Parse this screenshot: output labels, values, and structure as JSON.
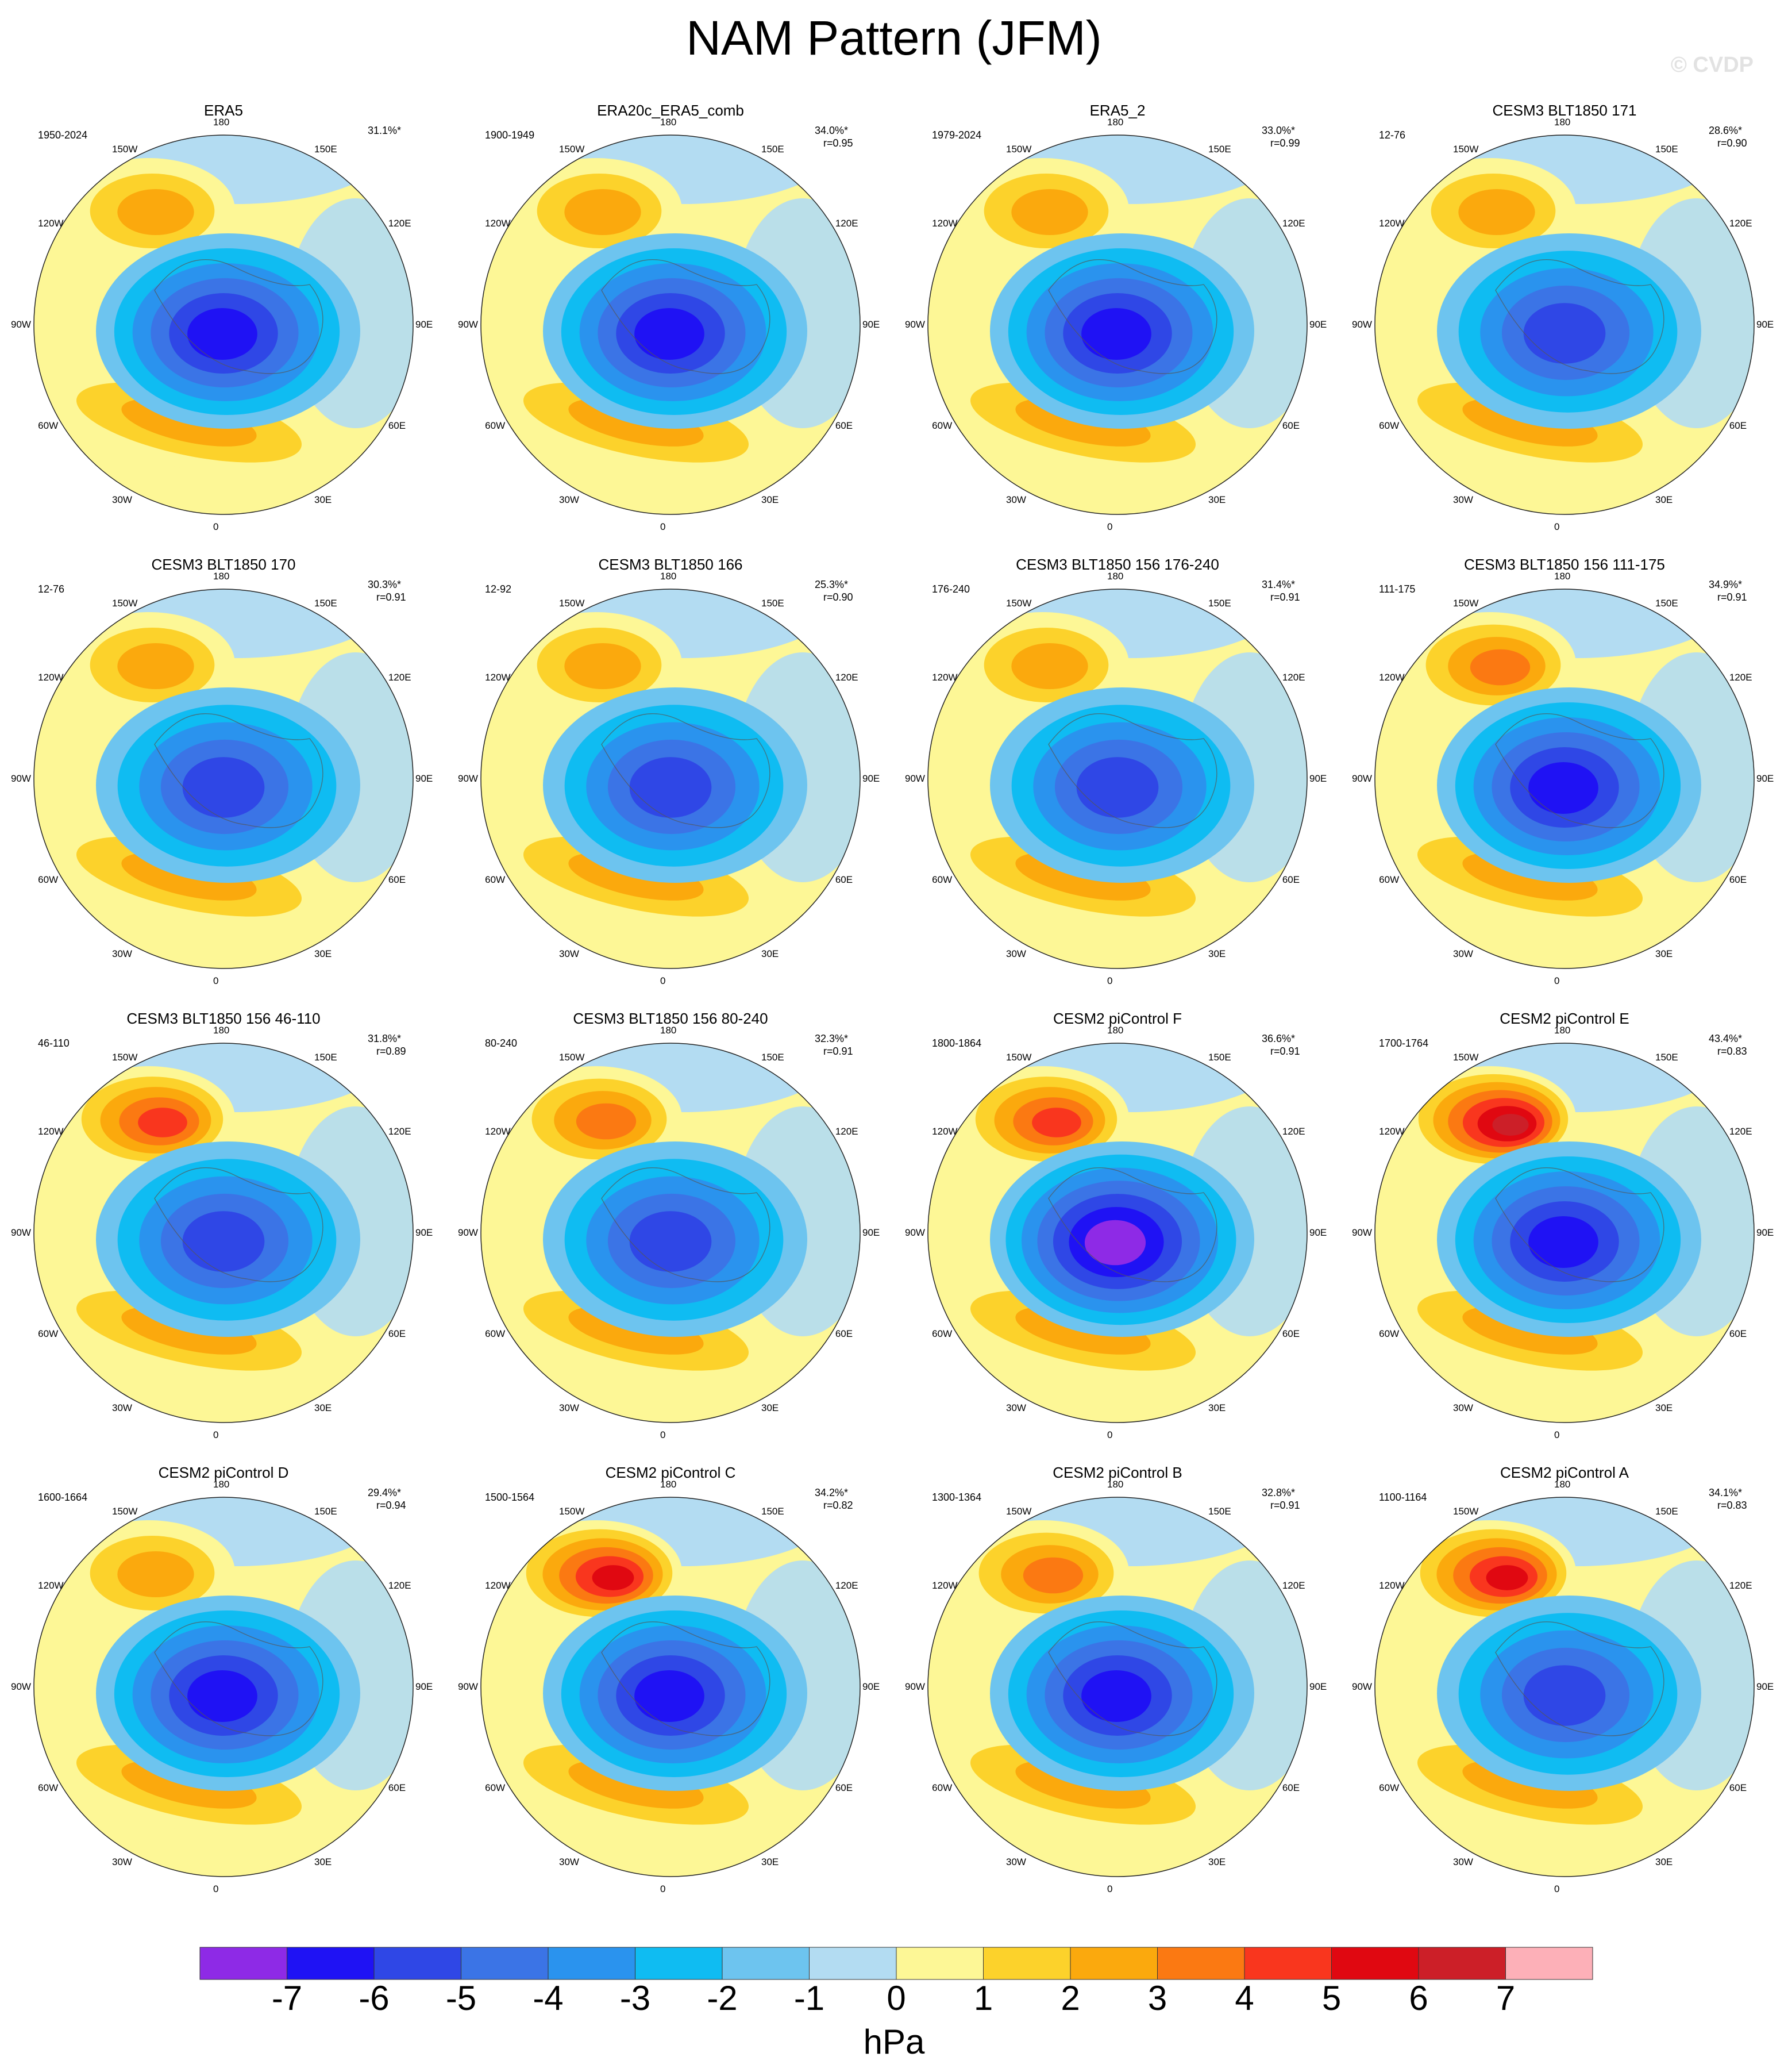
{
  "title": "NAM Pattern (JFM)",
  "watermark": "© CVDP",
  "lon_labels": [
    "180",
    "150E",
    "120E",
    "90E",
    "60E",
    "30E",
    "0",
    "30W",
    "60W",
    "90W",
    "120W",
    "150W"
  ],
  "colorbar": {
    "units": "hPa",
    "labels": [
      "-7",
      "-6",
      "-5",
      "-4",
      "-3",
      "-2",
      "-1",
      "0",
      "1",
      "2",
      "3",
      "4",
      "5",
      "6",
      "7"
    ],
    "colors": [
      "#8e2ae6",
      "#1f12f4",
      "#2f47e6",
      "#3b74e6",
      "#2a93ee",
      "#0fbcf2",
      "#6dc4ef",
      "#b3dcf2",
      "#fdf796",
      "#fcd22b",
      "#fba90d",
      "#fb7912",
      "#f9361e",
      "#e00811",
      "#cc1f28",
      "#fdb0b8"
    ]
  },
  "panels": [
    {
      "title": "ERA5",
      "period": "1950-2024",
      "pct": "31.1%*",
      "r": "",
      "pos_max": 3,
      "neg_min": -6
    },
    {
      "title": "ERA20c_ERA5_comb",
      "period": "1900-1949",
      "pct": "34.0%*",
      "r": "r=0.95",
      "pos_max": 3,
      "neg_min": -6
    },
    {
      "title": "ERA5_2",
      "period": "1979-2024",
      "pct": "33.0%*",
      "r": "r=0.99",
      "pos_max": 3,
      "neg_min": -6
    },
    {
      "title": "CESM3 BLT1850 171",
      "period": "12-76",
      "pct": "28.6%*",
      "r": "r=0.90",
      "pos_max": 3,
      "neg_min": -5
    },
    {
      "title": "CESM3 BLT1850 170",
      "period": "12-76",
      "pct": "30.3%*",
      "r": "r=0.91",
      "pos_max": 3,
      "neg_min": -5
    },
    {
      "title": "CESM3 BLT1850 166",
      "period": "12-92",
      "pct": "25.3%*",
      "r": "r=0.90",
      "pos_max": 3,
      "neg_min": -5
    },
    {
      "title": "CESM3 BLT1850 156 176-240",
      "period": "176-240",
      "pct": "31.4%*",
      "r": "r=0.91",
      "pos_max": 3,
      "neg_min": -5
    },
    {
      "title": "CESM3 BLT1850 156 111-175",
      "period": "111-175",
      "pct": "34.9%*",
      "r": "r=0.91",
      "pos_max": 4,
      "neg_min": -6
    },
    {
      "title": "CESM3 BLT1850 156 46-110",
      "period": "46-110",
      "pct": "31.8%*",
      "r": "r=0.89",
      "pos_max": 5,
      "neg_min": -5
    },
    {
      "title": "CESM3 BLT1850 156 80-240",
      "period": "80-240",
      "pct": "32.3%*",
      "r": "r=0.91",
      "pos_max": 4,
      "neg_min": -5
    },
    {
      "title": "CESM2 piControl F",
      "period": "1800-1864",
      "pct": "36.6%*",
      "r": "r=0.91",
      "pos_max": 5,
      "neg_min": -7
    },
    {
      "title": "CESM2 piControl E",
      "period": "1700-1764",
      "pct": "43.4%*",
      "r": "r=0.83",
      "pos_max": 7,
      "neg_min": -6
    },
    {
      "title": "CESM2 piControl D",
      "period": "1600-1664",
      "pct": "29.4%*",
      "r": "r=0.94",
      "pos_max": 3,
      "neg_min": -6
    },
    {
      "title": "CESM2 piControl C",
      "period": "1500-1564",
      "pct": "34.2%*",
      "r": "r=0.82",
      "pos_max": 6,
      "neg_min": -6
    },
    {
      "title": "CESM2 piControl B",
      "period": "1300-1364",
      "pct": "32.8%*",
      "r": "r=0.91",
      "pos_max": 4,
      "neg_min": -6
    },
    {
      "title": "CESM2 piControl A",
      "period": "1100-1164",
      "pct": "34.1%*",
      "r": "r=0.83",
      "pos_max": 6,
      "neg_min": -5
    }
  ]
}
